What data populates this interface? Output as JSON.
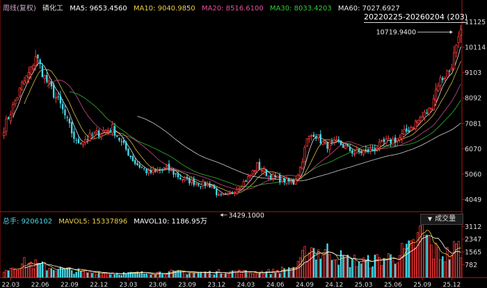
{
  "header": {
    "period": "周线(复权)",
    "symbol": "磷化工",
    "ma": [
      {
        "label": "MA5:",
        "value": "9653.4560",
        "color": "#ffffff"
      },
      {
        "label": "MA10:",
        "value": "9040.9850",
        "color": "#f0d048"
      },
      {
        "label": "MA20:",
        "value": "8516.6100",
        "color": "#e8509a"
      },
      {
        "label": "MA30:",
        "value": "8033.4203",
        "color": "#38c838"
      },
      {
        "label": "MA60:",
        "value": "7027.6927",
        "color": "#e8e8e8"
      }
    ],
    "range": "20220225-20260204 (203)"
  },
  "volume_header": {
    "total_label": "总手:",
    "total_value": "9206102",
    "mavol5_label": "MAVOL5:",
    "mavol5_value": "15337896",
    "mavol10_label": "MAVOL10:",
    "mavol10_value": "1186.95万",
    "button_label": "成交量",
    "button_icon": "triangle-down-icon"
  },
  "colors": {
    "up": "#ff3a3a",
    "down": "#4ad8e8",
    "ma5": "#ffffff",
    "ma10": "#f0d048",
    "ma20": "#e8509a",
    "ma30": "#38c838",
    "ma60": "#e8e8e8",
    "axis": "#b01818"
  },
  "chart_data": {
    "type": "candlestick",
    "y_ticks": [
      "11125",
      "10114",
      "9103",
      "8092",
      "7081",
      "6070",
      "5060",
      "4049"
    ],
    "y_ticks_values": [
      11125,
      10114,
      9103,
      8092,
      7081,
      6070,
      5060,
      4049
    ],
    "ylim": [
      3700,
      11500
    ],
    "vol_ticks": [
      "3112",
      "2347",
      "1565",
      "782"
    ],
    "vol_ticks_values": [
      3112,
      2347,
      1565,
      782
    ],
    "vol_ylim": [
      0,
      3300
    ],
    "x_ticks": [
      "22.03",
      "22.06",
      "22.09",
      "22.12",
      "23.03",
      "23.06",
      "23.09",
      "23.12",
      "24.03",
      "24.06",
      "24.09",
      "24.12",
      "25.03",
      "25.06",
      "25.09",
      "25.12"
    ],
    "x_ticks_index": [
      3,
      16,
      29,
      42,
      55,
      68,
      81,
      94,
      107,
      120,
      133,
      146,
      159,
      172,
      185,
      198
    ],
    "n_bars": 203,
    "max_label": "10719.9400",
    "min_label": "3429.1000",
    "close_anchors": [
      [
        0,
        6900
      ],
      [
        8,
        8600
      ],
      [
        12,
        9200
      ],
      [
        14,
        9800
      ],
      [
        18,
        8900
      ],
      [
        25,
        7800
      ],
      [
        32,
        6300
      ],
      [
        42,
        6700
      ],
      [
        48,
        6900
      ],
      [
        52,
        6300
      ],
      [
        58,
        5500
      ],
      [
        64,
        5100
      ],
      [
        72,
        5300
      ],
      [
        78,
        4900
      ],
      [
        85,
        4700
      ],
      [
        92,
        4600
      ],
      [
        95,
        4150
      ],
      [
        99,
        4200
      ],
      [
        103,
        4500
      ],
      [
        108,
        4900
      ],
      [
        112,
        5400
      ],
      [
        117,
        5000
      ],
      [
        122,
        4850
      ],
      [
        128,
        4700
      ],
      [
        131,
        5300
      ],
      [
        134,
        6400
      ],
      [
        137,
        6700
      ],
      [
        142,
        6200
      ],
      [
        148,
        6300
      ],
      [
        155,
        5900
      ],
      [
        162,
        6000
      ],
      [
        168,
        6300
      ],
      [
        175,
        6500
      ],
      [
        183,
        7200
      ],
      [
        188,
        7600
      ],
      [
        192,
        8700
      ],
      [
        197,
        9200
      ],
      [
        202,
        10600
      ]
    ],
    "vol_anchors": [
      [
        0,
        550
      ],
      [
        10,
        900
      ],
      [
        20,
        620
      ],
      [
        35,
        350
      ],
      [
        45,
        300
      ],
      [
        55,
        260
      ],
      [
        70,
        320
      ],
      [
        80,
        330
      ],
      [
        90,
        300
      ],
      [
        100,
        380
      ],
      [
        110,
        320
      ],
      [
        120,
        380
      ],
      [
        130,
        700
      ],
      [
        135,
        1900
      ],
      [
        140,
        1500
      ],
      [
        145,
        1650
      ],
      [
        150,
        1100
      ],
      [
        160,
        950
      ],
      [
        170,
        1200
      ],
      [
        180,
        1700
      ],
      [
        185,
        2800
      ],
      [
        190,
        1600
      ],
      [
        196,
        1400
      ],
      [
        202,
        1900
      ]
    ]
  }
}
